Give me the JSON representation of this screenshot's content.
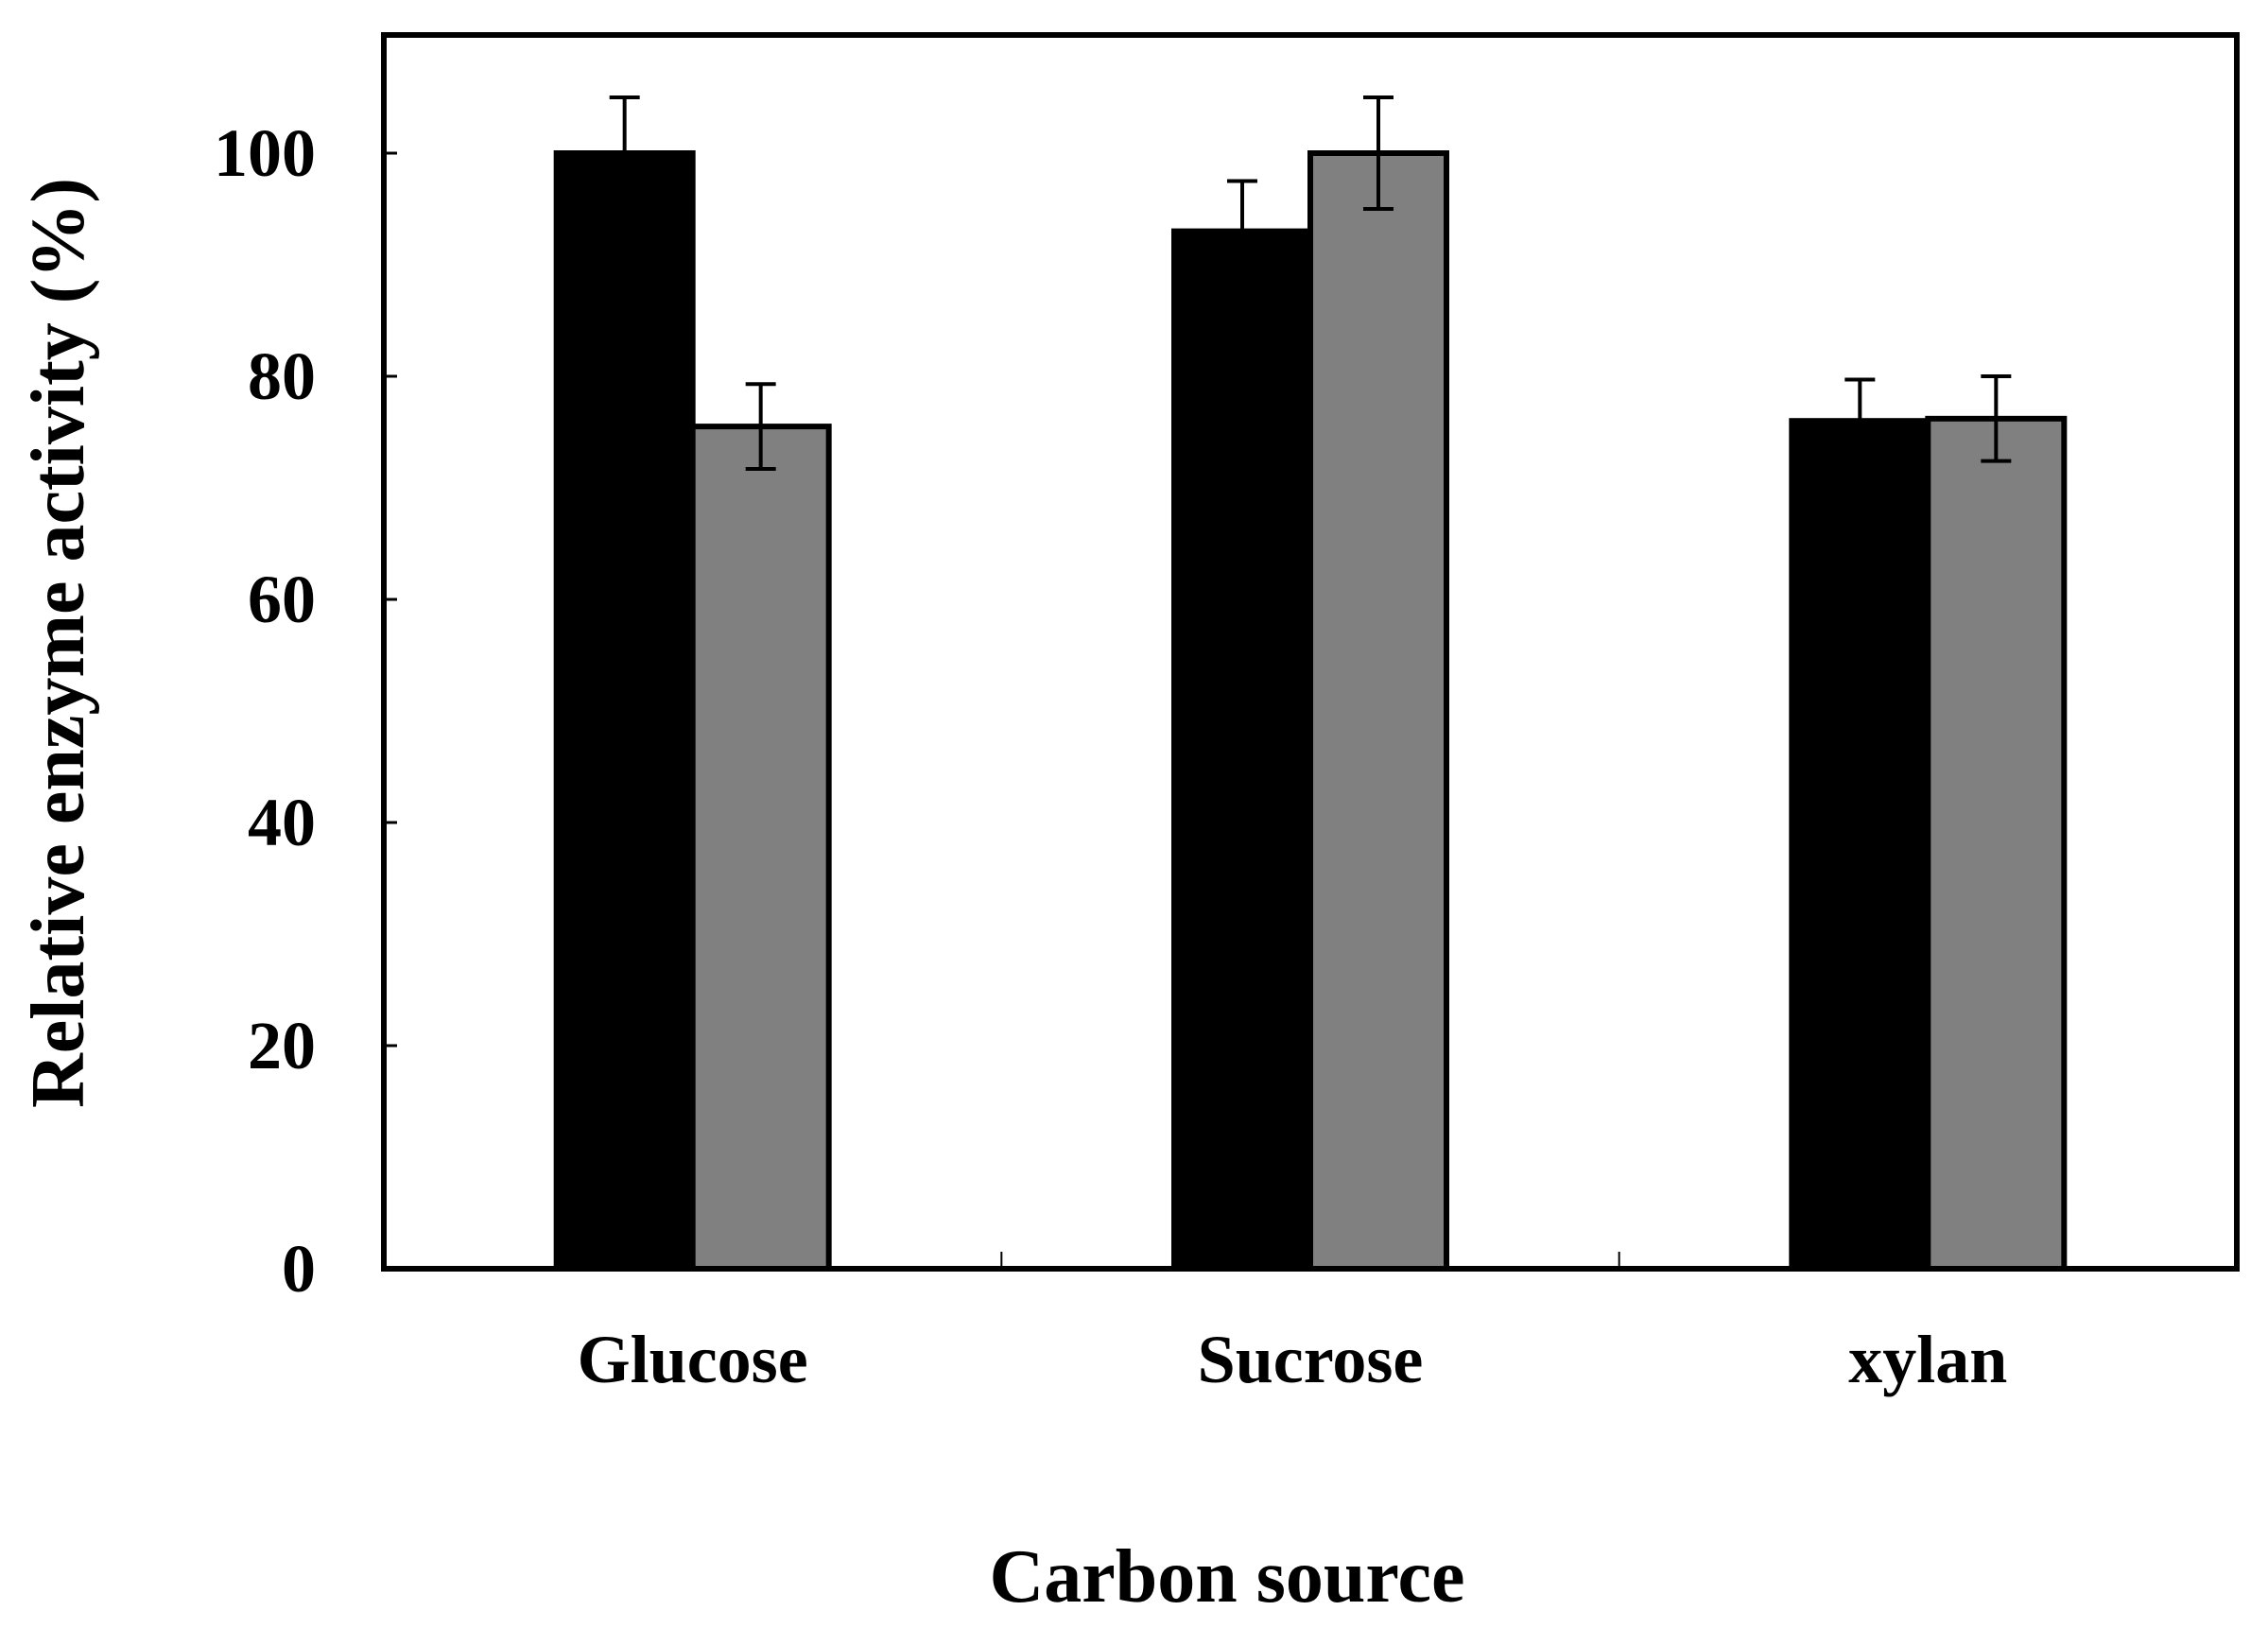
{
  "chart_data": {
    "type": "bar",
    "title": "",
    "xlabel": "Carbon source",
    "ylabel": "Relative enzyme activity (%)",
    "categories": [
      "Glucose",
      "Sucrose",
      "xylan"
    ],
    "ylim": [
      0,
      110
    ],
    "yticks": [
      0,
      20,
      40,
      60,
      80,
      100
    ],
    "ytick_labels": [
      "0",
      "20",
      "40",
      "60",
      "80",
      "100"
    ],
    "grid": false,
    "legend": "none",
    "series": [
      {
        "name": "Series 1",
        "color": "#000000",
        "values": [
          100,
          93,
          76
        ],
        "errors": [
          5,
          4.5,
          3.7
        ]
      },
      {
        "name": "Series 2",
        "color": "#808080",
        "values": [
          75.5,
          100,
          76.2
        ],
        "errors": [
          3.8,
          5,
          3.8
        ]
      }
    ]
  }
}
